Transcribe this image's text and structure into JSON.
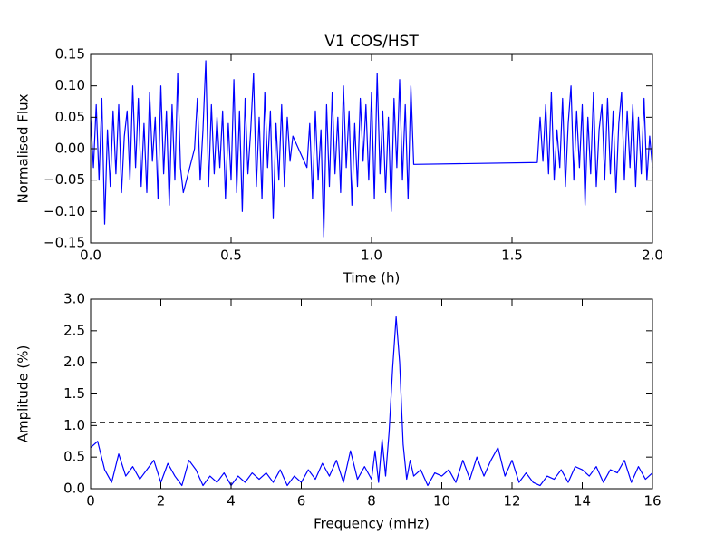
{
  "chart_data": [
    {
      "type": "line",
      "title": "V1 COS/HST",
      "xlabel": "Time (h)",
      "ylabel": "Normalised Flux",
      "color": "#0000ff",
      "xlim": [
        0,
        2
      ],
      "ylim": [
        -0.15,
        0.15
      ],
      "xticks": [
        {
          "value": 0,
          "label": "0.0"
        },
        0.5,
        {
          "value": 1,
          "label": "1.0"
        },
        1.5,
        {
          "value": 2,
          "label": "2.0"
        }
      ],
      "yticks": [
        {
          "value": -0.15,
          "label": "−0.15"
        },
        {
          "value": -0.1,
          "label": "−0.10"
        },
        {
          "value": -0.05,
          "label": "−0.05"
        },
        {
          "value": 0,
          "label": "0.00"
        },
        0.05,
        {
          "value": 0.1,
          "label": "0.10"
        },
        0.15
      ],
      "x": [
        0.0,
        0.01,
        0.02,
        0.03,
        0.04,
        0.05,
        0.06,
        0.07,
        0.08,
        0.09,
        0.1,
        0.11,
        0.12,
        0.13,
        0.14,
        0.15,
        0.16,
        0.17,
        0.18,
        0.19,
        0.2,
        0.21,
        0.22,
        0.23,
        0.24,
        0.25,
        0.26,
        0.27,
        0.28,
        0.29,
        0.3,
        0.31,
        0.32,
        0.33,
        0.37,
        0.38,
        0.39,
        0.4,
        0.41,
        0.42,
        0.43,
        0.44,
        0.45,
        0.46,
        0.47,
        0.48,
        0.49,
        0.5,
        0.51,
        0.52,
        0.53,
        0.54,
        0.55,
        0.56,
        0.57,
        0.58,
        0.59,
        0.6,
        0.61,
        0.62,
        0.63,
        0.64,
        0.65,
        0.66,
        0.67,
        0.68,
        0.69,
        0.7,
        0.71,
        0.72,
        0.77,
        0.78,
        0.79,
        0.8,
        0.81,
        0.82,
        0.83,
        0.84,
        0.85,
        0.86,
        0.87,
        0.88,
        0.89,
        0.9,
        0.91,
        0.92,
        0.93,
        0.94,
        0.95,
        0.96,
        0.97,
        0.98,
        0.99,
        1.0,
        1.01,
        1.02,
        1.03,
        1.04,
        1.05,
        1.06,
        1.07,
        1.08,
        1.09,
        1.1,
        1.11,
        1.12,
        1.13,
        1.14,
        1.15,
        1.59,
        1.6,
        1.61,
        1.62,
        1.63,
        1.64,
        1.65,
        1.66,
        1.67,
        1.68,
        1.69,
        1.7,
        1.71,
        1.72,
        1.73,
        1.74,
        1.75,
        1.76,
        1.77,
        1.78,
        1.79,
        1.8,
        1.81,
        1.82,
        1.83,
        1.84,
        1.85,
        1.86,
        1.87,
        1.88,
        1.89,
        1.9,
        1.91,
        1.92,
        1.93,
        1.94,
        1.95,
        1.96,
        1.97,
        1.98,
        1.99,
        2.0
      ],
      "values": [
        0.05,
        -0.03,
        0.07,
        -0.05,
        0.08,
        -0.12,
        0.03,
        -0.06,
        0.06,
        -0.04,
        0.07,
        -0.07,
        0.02,
        0.06,
        -0.05,
        0.1,
        -0.03,
        0.08,
        -0.06,
        0.04,
        -0.07,
        0.09,
        -0.02,
        0.05,
        -0.08,
        0.1,
        -0.04,
        0.06,
        -0.09,
        0.07,
        -0.05,
        0.12,
        -0.03,
        -0.07,
        0.0,
        0.08,
        -0.05,
        0.03,
        0.14,
        -0.06,
        0.07,
        -0.04,
        0.05,
        -0.03,
        0.06,
        -0.08,
        0.04,
        -0.05,
        0.11,
        -0.07,
        0.06,
        -0.1,
        0.08,
        -0.04,
        0.03,
        0.12,
        -0.06,
        0.05,
        -0.08,
        0.09,
        -0.03,
        0.06,
        -0.11,
        0.04,
        -0.05,
        0.07,
        -0.06,
        0.05,
        -0.02,
        0.02,
        -0.03,
        0.04,
        -0.08,
        0.06,
        -0.05,
        0.03,
        -0.14,
        0.07,
        -0.06,
        0.09,
        -0.04,
        0.05,
        -0.07,
        0.1,
        -0.03,
        0.06,
        -0.09,
        0.04,
        -0.06,
        0.08,
        -0.02,
        0.07,
        -0.05,
        0.09,
        -0.08,
        0.12,
        -0.04,
        0.06,
        -0.07,
        0.05,
        -0.1,
        0.08,
        -0.03,
        0.11,
        -0.05,
        0.07,
        -0.08,
        0.1,
        -0.025,
        -0.022,
        0.05,
        -0.02,
        0.07,
        -0.04,
        0.09,
        -0.05,
        0.03,
        -0.03,
        0.08,
        -0.06,
        0.04,
        0.1,
        -0.05,
        0.06,
        -0.03,
        0.07,
        -0.09,
        0.05,
        -0.04,
        0.09,
        -0.06,
        0.03,
        0.07,
        -0.05,
        0.08,
        -0.04,
        0.06,
        -0.07,
        0.04,
        0.09,
        -0.05,
        0.06,
        -0.03,
        0.07,
        -0.06,
        0.05,
        -0.04,
        0.08,
        -0.05,
        0.02,
        -0.03
      ]
    },
    {
      "type": "line",
      "xlabel": "Frequency (mHz)",
      "ylabel": "Amplitude (%)",
      "color": "#0000ff",
      "xlim": [
        0,
        16
      ],
      "ylim": [
        0,
        3
      ],
      "xticks": [
        0,
        2,
        4,
        6,
        8,
        10,
        12,
        14,
        16
      ],
      "yticks": [
        {
          "value": 0,
          "label": "0.0"
        },
        0.5,
        {
          "value": 1,
          "label": "1.0"
        },
        1.5,
        {
          "value": 2,
          "label": "2.0"
        },
        2.5,
        {
          "value": 3,
          "label": "3.0"
        }
      ],
      "hline": {
        "value": 1.05,
        "color": "#000000",
        "dashed": true
      },
      "x": [
        0.0,
        0.2,
        0.4,
        0.6,
        0.8,
        1.0,
        1.2,
        1.4,
        1.6,
        1.8,
        2.0,
        2.2,
        2.4,
        2.6,
        2.8,
        3.0,
        3.2,
        3.4,
        3.6,
        3.8,
        4.0,
        4.2,
        4.4,
        4.6,
        4.8,
        5.0,
        5.2,
        5.4,
        5.6,
        5.8,
        6.0,
        6.2,
        6.4,
        6.6,
        6.8,
        7.0,
        7.2,
        7.4,
        7.6,
        7.8,
        8.0,
        8.1,
        8.2,
        8.3,
        8.4,
        8.5,
        8.6,
        8.7,
        8.8,
        8.9,
        9.0,
        9.1,
        9.2,
        9.4,
        9.6,
        9.8,
        10.0,
        10.2,
        10.4,
        10.6,
        10.8,
        11.0,
        11.2,
        11.4,
        11.6,
        11.8,
        12.0,
        12.2,
        12.4,
        12.6,
        12.8,
        13.0,
        13.2,
        13.4,
        13.6,
        13.8,
        14.0,
        14.2,
        14.4,
        14.6,
        14.8,
        15.0,
        15.2,
        15.4,
        15.6,
        15.8,
        16.0
      ],
      "values": [
        0.65,
        0.75,
        0.3,
        0.1,
        0.55,
        0.2,
        0.35,
        0.15,
        0.3,
        0.45,
        0.1,
        0.4,
        0.2,
        0.05,
        0.45,
        0.3,
        0.05,
        0.2,
        0.1,
        0.25,
        0.05,
        0.2,
        0.1,
        0.25,
        0.15,
        0.25,
        0.1,
        0.3,
        0.05,
        0.2,
        0.1,
        0.3,
        0.15,
        0.4,
        0.2,
        0.45,
        0.1,
        0.6,
        0.15,
        0.35,
        0.15,
        0.6,
        0.1,
        0.78,
        0.2,
        0.9,
        1.9,
        2.72,
        2.0,
        0.7,
        0.15,
        0.45,
        0.2,
        0.3,
        0.05,
        0.25,
        0.2,
        0.3,
        0.1,
        0.45,
        0.15,
        0.5,
        0.2,
        0.45,
        0.65,
        0.2,
        0.45,
        0.1,
        0.25,
        0.1,
        0.05,
        0.2,
        0.15,
        0.3,
        0.1,
        0.35,
        0.3,
        0.2,
        0.35,
        0.1,
        0.3,
        0.25,
        0.45,
        0.1,
        0.35,
        0.15,
        0.25
      ]
    }
  ]
}
